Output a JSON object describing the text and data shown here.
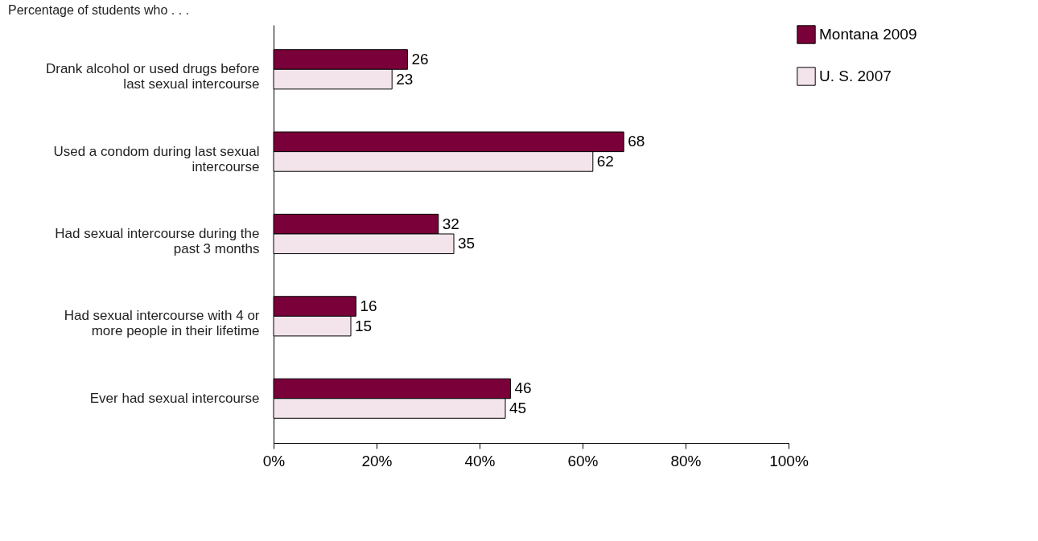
{
  "chart_data": {
    "type": "bar",
    "orientation": "horizontal",
    "title": "Percentage of students who . . .",
    "categories": [
      "Drank alcohol or used drugs before last sexual intercourse",
      "Used a condom during last sexual intercourse",
      "Had sexual intercourse during the past 3 months",
      "Had sexual intercourse with 4 or more people in their lifetime",
      "Ever had sexual intercourse"
    ],
    "series": [
      {
        "name": "Montana 2009",
        "color": "#7a0039",
        "values": [
          26,
          68,
          32,
          16,
          46
        ]
      },
      {
        "name": "U. S. 2007",
        "color": "#f3e4ec",
        "values": [
          23,
          62,
          35,
          15,
          45
        ]
      }
    ],
    "xlim": [
      0,
      100
    ],
    "xticks": [
      {
        "value": 0,
        "label": "0%"
      },
      {
        "value": 20,
        "label": "20%"
      },
      {
        "value": 40,
        "label": "40%"
      },
      {
        "value": 60,
        "label": "60%"
      },
      {
        "value": 80,
        "label": "80%"
      },
      {
        "value": 100,
        "label": "100%"
      }
    ],
    "data_labels": true,
    "grid": false,
    "legend": "right"
  }
}
